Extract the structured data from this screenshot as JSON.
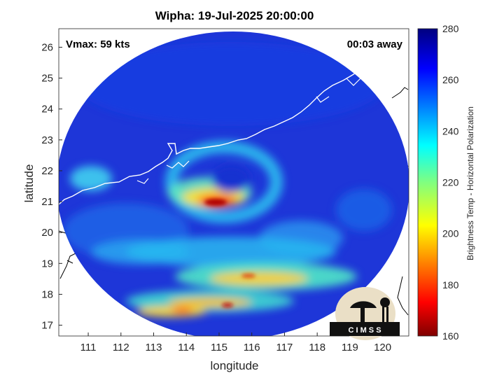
{
  "title": "Wipha: 19-Jul-2025 20:00:00",
  "annotations": {
    "vmax": "Vmax: 59 kts",
    "away": "00:03 away"
  },
  "axes": {
    "xlabel": "longitude",
    "ylabel": "latitude",
    "xlim": [
      110.1,
      120.8
    ],
    "ylim": [
      16.65,
      26.6
    ],
    "xticks": [
      "111",
      "112",
      "113",
      "114",
      "115",
      "116",
      "117",
      "118",
      "119",
      "120"
    ],
    "yticks": [
      "17",
      "18",
      "19",
      "20",
      "21",
      "22",
      "23",
      "24",
      "25",
      "26"
    ]
  },
  "colorbar": {
    "label": "Brightness Temp - Horizontal Polarization",
    "range": [
      160,
      280
    ],
    "ticks": [
      "160",
      "180",
      "200",
      "220",
      "240",
      "260",
      "280"
    ],
    "colormap": "jet"
  },
  "logo": {
    "text": "C I M S S"
  },
  "colors": {
    "background": "#1a2fd4",
    "coast": "#ffffff",
    "map_coast": "#000000"
  }
}
